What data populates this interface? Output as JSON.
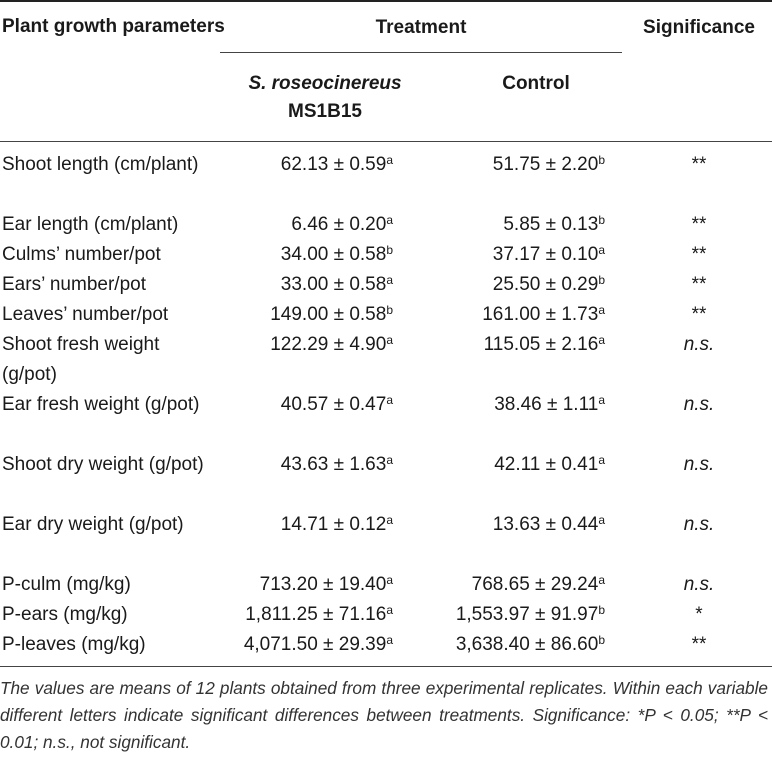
{
  "headers": {
    "parameter": "Plant growth parameters",
    "treatment": "Treatment",
    "significance": "Significance",
    "strep_species": "S. roseocinereus",
    "strep_strain": "MS1B15",
    "control": "Control"
  },
  "rows": [
    {
      "param": "Shoot length (cm/plant)",
      "strep": "62.13 ± 0.59",
      "strep_sup": "a",
      "ctrl": "51.75 ± 2.20",
      "ctrl_sup": "b",
      "sig": "**"
    },
    {
      "param": "Ear length (cm/plant)",
      "strep": "6.46 ± 0.20",
      "strep_sup": "a",
      "ctrl": "5.85 ± 0.13",
      "ctrl_sup": "b",
      "sig": "**"
    },
    {
      "param": "Culms’ number/pot",
      "strep": "34.00 ± 0.58",
      "strep_sup": "b",
      "ctrl": "37.17 ± 0.10",
      "ctrl_sup": "a",
      "sig": "**"
    },
    {
      "param": "Ears’ number/pot",
      "strep": "33.00 ± 0.58",
      "strep_sup": "a",
      "ctrl": "25.50 ± 0.29",
      "ctrl_sup": "b",
      "sig": "**"
    },
    {
      "param": "Leaves’ number/pot",
      "strep": "149.00 ± 0.58",
      "strep_sup": "b",
      "ctrl": "161.00 ± 1.73",
      "ctrl_sup": "a",
      "sig": "**"
    },
    {
      "param": "Shoot fresh weight (g/pot)",
      "strep": "122.29 ± 4.90",
      "strep_sup": "a",
      "ctrl": "115.05 ± 2.16",
      "ctrl_sup": "a",
      "sig": "n.s."
    },
    {
      "param": "Ear fresh weight (g/pot)",
      "strep": "40.57 ± 0.47",
      "strep_sup": "a",
      "ctrl": "38.46 ± 1.11",
      "ctrl_sup": "a",
      "sig": "n.s."
    },
    {
      "param": "Shoot dry weight (g/pot)",
      "strep": "43.63 ± 1.63",
      "strep_sup": "a",
      "ctrl": "42.11 ± 0.41",
      "ctrl_sup": "a",
      "sig": "n.s."
    },
    {
      "param": "Ear dry weight (g/pot)",
      "strep": "14.71 ± 0.12",
      "strep_sup": "a",
      "ctrl": "13.63 ± 0.44",
      "ctrl_sup": "a",
      "sig": "n.s."
    },
    {
      "param": "P-culm (mg/kg)",
      "strep": "713.20 ± 19.40",
      "strep_sup": "a",
      "ctrl": "768.65 ± 29.24",
      "ctrl_sup": "a",
      "sig": "n.s."
    },
    {
      "param": "P-ears (mg/kg)",
      "strep": "1,811.25 ± 71.16",
      "strep_sup": "a",
      "ctrl": "1,553.97 ± 91.97",
      "ctrl_sup": "b",
      "sig": "*"
    },
    {
      "param": "P-leaves (mg/kg)",
      "strep": "4,071.50 ± 29.39",
      "strep_sup": "a",
      "ctrl": "3,638.40 ± 86.60",
      "ctrl_sup": "b",
      "sig": "**"
    }
  ],
  "footnote": "The values are means of 12 plants obtained from three experimental replicates. Within each variable different letters indicate significant differences between treatments. Significance: *P < 0.05; **P < 0.01; n.s., not significant."
}
